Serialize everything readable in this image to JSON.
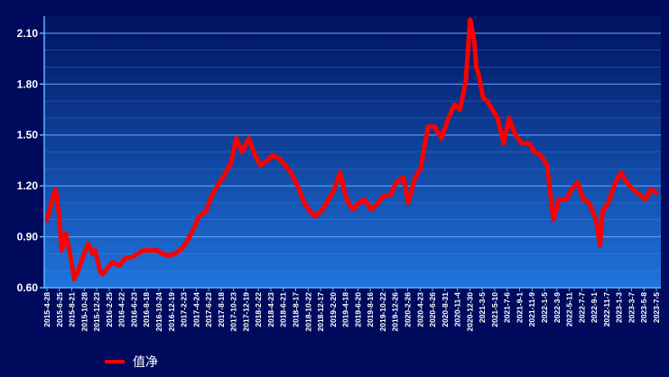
{
  "chart_data": {
    "type": "line",
    "title": "",
    "xlabel": "",
    "ylabel": "",
    "ylim": [
      0.6,
      2.2
    ],
    "yticks": [
      "0.60",
      "0.90",
      "1.20",
      "1.50",
      "1.80",
      "2.10"
    ],
    "grid": true,
    "legend_position": "bottom-left",
    "colors": {
      "background": "#000b5e",
      "plot_top": "#00135f",
      "plot_bottom": "#1f74dc",
      "line": "#ff0000",
      "grid": "#6aa8ff",
      "axis": "#5fb5ff"
    },
    "x_tick_labels": [
      "2015-4-28",
      "2015-6-25",
      "2015-8-21",
      "2015-10-28",
      "2015-12-23",
      "2016-2-25",
      "2016-4-22",
      "2016-6-23",
      "2016-8-18",
      "2016-10-24",
      "2016-12-19",
      "2017-2-23",
      "2017-4-24",
      "2017-6-23",
      "2017-8-18",
      "2017-10-23",
      "2017-12-19",
      "2018-2-22",
      "2018-4-23",
      "2018-6-21",
      "2018-8-17",
      "2018-10-22",
      "2018-12-17",
      "2019-2-20",
      "2019-4-18",
      "2019-6-20",
      "2019-8-16",
      "2019-10-22",
      "2019-12-26",
      "2020-2-26",
      "2020-4-23",
      "2020-6-26",
      "2020-8-31",
      "2020-11-4",
      "2020-12-30",
      "2021-3-5",
      "2021-5-10",
      "2021-7-6",
      "2021-9-1",
      "2021-11-9",
      "2022-1-5",
      "2022-3-9",
      "2022-5-11",
      "2022-7-7",
      "2022-9-1",
      "2022-11-7",
      "2023-1-3",
      "2023-3-7",
      "2023-5-8",
      "2023-7-5"
    ],
    "series": [
      {
        "name": "值净",
        "x": [
          "2015-4-28",
          "2015-5-20",
          "2015-6-10",
          "2015-6-25",
          "2015-7-10",
          "2015-7-30",
          "2015-8-21",
          "2015-9-10",
          "2015-9-30",
          "2015-10-28",
          "2015-11-20",
          "2015-12-10",
          "2015-12-23",
          "2016-1-15",
          "2016-1-28",
          "2016-2-25",
          "2016-3-15",
          "2016-4-5",
          "2016-4-22",
          "2016-5-15",
          "2016-6-23",
          "2016-7-20",
          "2016-8-18",
          "2016-9-20",
          "2016-10-24",
          "2016-11-20",
          "2016-12-19",
          "2017-1-20",
          "2017-2-23",
          "2017-3-20",
          "2017-4-24",
          "2017-5-20",
          "2017-6-23",
          "2017-7-20",
          "2017-8-18",
          "2017-9-20",
          "2017-10-23",
          "2017-11-20",
          "2017-12-19",
          "2018-1-20",
          "2018-2-22",
          "2018-3-20",
          "2018-4-23",
          "2018-5-20",
          "2018-6-21",
          "2018-7-20",
          "2018-8-17",
          "2018-9-20",
          "2018-10-22",
          "2018-11-20",
          "2018-12-17",
          "2019-1-20",
          "2019-2-20",
          "2019-3-20",
          "2019-4-18",
          "2019-5-20",
          "2019-6-20",
          "2019-7-20",
          "2019-8-16",
          "2019-9-20",
          "2019-10-22",
          "2019-11-20",
          "2019-12-26",
          "2020-1-20",
          "2020-2-26",
          "2020-3-20",
          "2020-4-23",
          "2020-5-20",
          "2020-6-26",
          "2020-7-28",
          "2020-8-31",
          "2020-10-5",
          "2020-11-4",
          "2020-12-1",
          "2020-12-30",
          "2021-1-20",
          "2021-2-10",
          "2021-2-20",
          "2021-3-5",
          "2021-3-25",
          "2021-4-15",
          "2021-5-10",
          "2021-6-5",
          "2021-7-6",
          "2021-8-1",
          "2021-9-1",
          "2021-10-5",
          "2021-11-9",
          "2021-12-5",
          "2022-1-5",
          "2022-2-5",
          "2022-3-9",
          "2022-4-5",
          "2022-5-11",
          "2022-6-5",
          "2022-7-7",
          "2022-8-5",
          "2022-9-1",
          "2022-10-5",
          "2022-10-25",
          "2022-11-7",
          "2022-12-5",
          "2023-1-3",
          "2023-2-5",
          "2023-3-7",
          "2023-4-5",
          "2023-5-8",
          "2023-6-5",
          "2023-7-5",
          "2023-7-31"
        ],
        "values": [
          1.0,
          1.1,
          1.18,
          1.05,
          0.82,
          0.92,
          0.8,
          0.65,
          0.7,
          0.8,
          0.86,
          0.8,
          0.82,
          0.7,
          0.68,
          0.72,
          0.75,
          0.74,
          0.73,
          0.77,
          0.78,
          0.8,
          0.82,
          0.82,
          0.82,
          0.8,
          0.79,
          0.8,
          0.83,
          0.87,
          0.95,
          1.02,
          1.05,
          1.14,
          1.2,
          1.26,
          1.33,
          1.48,
          1.4,
          1.48,
          1.38,
          1.32,
          1.35,
          1.38,
          1.36,
          1.32,
          1.28,
          1.2,
          1.1,
          1.05,
          1.02,
          1.06,
          1.12,
          1.18,
          1.28,
          1.12,
          1.06,
          1.1,
          1.12,
          1.06,
          1.1,
          1.14,
          1.15,
          1.22,
          1.25,
          1.1,
          1.25,
          1.3,
          1.55,
          1.55,
          1.48,
          1.6,
          1.68,
          1.65,
          1.82,
          2.18,
          2.05,
          1.9,
          1.85,
          1.72,
          1.7,
          1.65,
          1.6,
          1.45,
          1.6,
          1.5,
          1.45,
          1.45,
          1.4,
          1.38,
          1.32,
          1.0,
          1.12,
          1.12,
          1.18,
          1.22,
          1.12,
          1.1,
          1.0,
          0.85,
          1.05,
          1.1,
          1.2,
          1.28,
          1.22,
          1.18,
          1.15,
          1.12,
          1.18,
          1.16
        ]
      }
    ]
  }
}
